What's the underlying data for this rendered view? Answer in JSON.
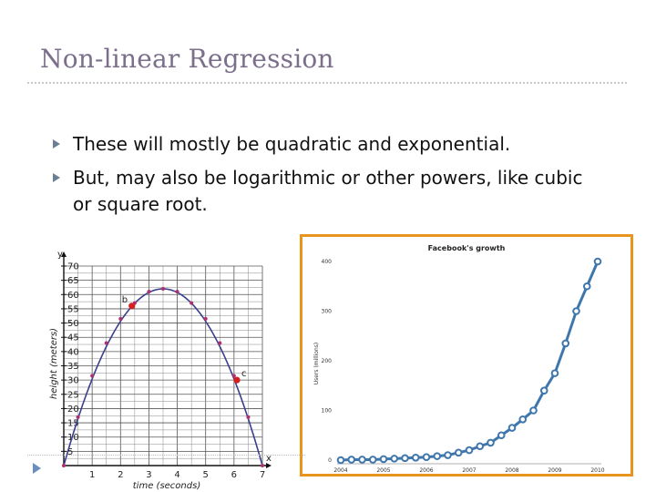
{
  "slide": {
    "title": "Non-linear Regression",
    "bullets": [
      "These will mostly be quadratic and exponential.",
      "But, may also be logarithmic or other powers, like cubic or square root."
    ],
    "colors": {
      "title": "#7b6f8c",
      "bullet_arrow": "#6a7f93",
      "frame": "#e8951f",
      "series_blue": "#3f77ad",
      "curve": "#3a3f8e",
      "point": "#d62020"
    }
  },
  "chart_data": [
    {
      "type": "line",
      "xlabel": "time (seconds)",
      "ylabel": "height (meters)",
      "x_axis_letter": "x",
      "y_axis_letter": "y",
      "xlim": [
        0,
        7
      ],
      "ylim": [
        0,
        70
      ],
      "x_ticks": [
        "1",
        "2",
        "3",
        "4",
        "5",
        "6",
        "7"
      ],
      "y_ticks": [
        "5",
        "10",
        "15",
        "20",
        "25",
        "30",
        "35",
        "40",
        "45",
        "50",
        "55",
        "60",
        "65",
        "70"
      ],
      "grid": true,
      "points": [
        {
          "x": 0,
          "y": 0
        },
        {
          "x": 0.5,
          "y": 17
        },
        {
          "x": 1,
          "y": 31.5
        },
        {
          "x": 1.5,
          "y": 43
        },
        {
          "x": 2,
          "y": 51.5
        },
        {
          "x": 2.5,
          "y": 57
        },
        {
          "x": 3,
          "y": 61
        },
        {
          "x": 3.5,
          "y": 62
        },
        {
          "x": 4,
          "y": 61
        },
        {
          "x": 4.5,
          "y": 57
        },
        {
          "x": 5,
          "y": 51.5
        },
        {
          "x": 5.5,
          "y": 43
        },
        {
          "x": 6,
          "y": 31.5
        },
        {
          "x": 6.5,
          "y": 17
        },
        {
          "x": 7,
          "y": 0
        }
      ],
      "highlighted": [
        {
          "label": "b",
          "x": 2.4,
          "y": 56
        },
        {
          "label": "c",
          "x": 6.1,
          "y": 30
        }
      ]
    },
    {
      "type": "line",
      "title": "Facebook's growth",
      "xlabel": "",
      "ylabel": "Users (millions)",
      "xlim": [
        2004,
        2010
      ],
      "ylim": [
        0,
        400
      ],
      "x_ticks": [
        "2004",
        "2005",
        "2006",
        "2007",
        "2008",
        "2009",
        "2010"
      ],
      "y_ticks": [
        "0",
        "100",
        "200",
        "300",
        "400"
      ],
      "grid": false,
      "series": [
        {
          "x": [
            2004.0,
            2004.25,
            2004.5,
            2004.75,
            2005.0,
            2005.25,
            2005.5,
            2005.75,
            2006.0,
            2006.25,
            2006.5,
            2006.75,
            2007.0,
            2007.25,
            2007.5,
            2007.75,
            2008.0,
            2008.25,
            2008.5,
            2008.75,
            2009.0,
            2009.25,
            2009.5,
            2009.75,
            2010.0
          ],
          "values": [
            0,
            1,
            1,
            1,
            2,
            3,
            4,
            5,
            6,
            8,
            10,
            15,
            20,
            28,
            35,
            50,
            65,
            82,
            100,
            140,
            175,
            235,
            300,
            350,
            400
          ]
        }
      ]
    }
  ]
}
